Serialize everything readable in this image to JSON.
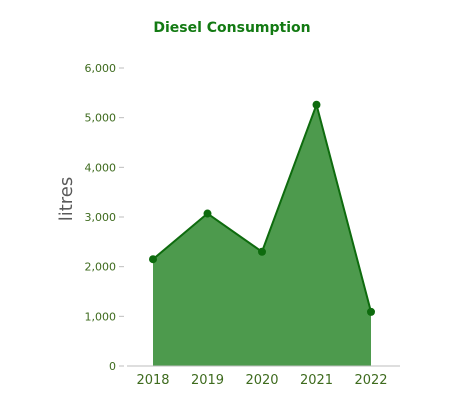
{
  "colors": {
    "title": "#137a13",
    "line": "#0e6b0e",
    "area": "#4d9a4d",
    "point": "#0e6b0e",
    "tick_label": "#3e6b1e",
    "axis_line": "#bdbdbd",
    "axis_title": "#5a5a5a"
  },
  "chart_data": {
    "type": "area",
    "title": "Diesel Consumption",
    "xlabel": "",
    "ylabel": "litres",
    "categories": [
      "2018",
      "2019",
      "2020",
      "2021",
      "2022"
    ],
    "series": [
      {
        "values": [
          2150,
          3070,
          2300,
          5260,
          1090
        ]
      }
    ],
    "ylim": [
      0,
      6000
    ],
    "yticks": [
      0,
      1000,
      2000,
      3000,
      4000,
      5000,
      6000
    ],
    "ytick_labels": [
      "0",
      "1,000",
      "2,000",
      "3,000",
      "4,000",
      "5,000",
      "6,000"
    ],
    "grid": false,
    "legend": "none"
  }
}
